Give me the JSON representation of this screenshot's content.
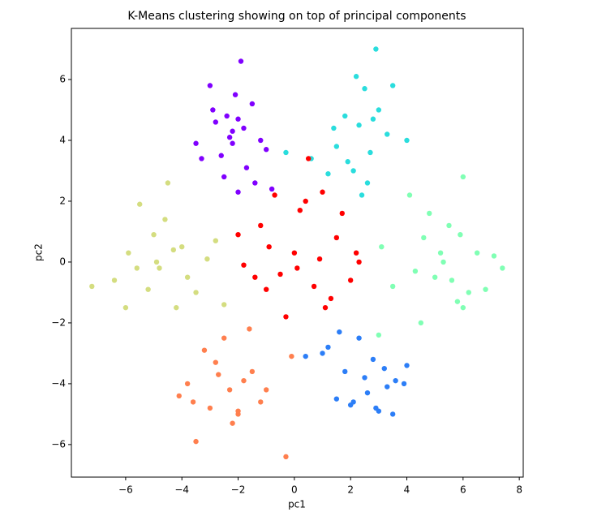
{
  "chart_data": {
    "type": "scatter",
    "title": "K-Means clustering showing on top of principal components",
    "x_label": "pc1",
    "y_label": "pc2",
    "xlim": [
      -7.93,
      8.14
    ],
    "ylim": [
      -7.07,
      7.68
    ],
    "xticks": [
      {
        "value": -6,
        "label": "−6"
      },
      {
        "value": -4,
        "label": "−4"
      },
      {
        "value": -2,
        "label": "−2"
      },
      0,
      2,
      4,
      6,
      8
    ],
    "yticks": [
      {
        "value": -6,
        "label": "−6"
      },
      {
        "value": -4,
        "label": "−4"
      },
      {
        "value": -2,
        "label": "−2"
      },
      0,
      2,
      4,
      6
    ],
    "grid": false,
    "series": [
      {
        "color": "#8000ff",
        "x": [
          -2.2,
          -3.0,
          -1.5,
          -2.6,
          -1.9,
          -2.4,
          -3.3,
          -1.2,
          -2.0,
          -2.8,
          -1.7,
          -2.3,
          -2.1,
          -3.5,
          -1.0,
          -2.5,
          -1.8,
          -2.9,
          -2.2,
          -1.4,
          -0.8,
          -2.0
        ],
        "y": [
          4.3,
          5.8,
          5.2,
          3.5,
          6.6,
          4.8,
          3.4,
          4.0,
          2.3,
          4.6,
          3.1,
          4.1,
          5.5,
          3.9,
          3.7,
          2.8,
          4.4,
          5.0,
          3.9,
          2.6,
          2.4,
          4.7
        ]
      },
      {
        "color": "#2adddd",
        "x": [
          2.3,
          2.9,
          1.8,
          2.5,
          3.5,
          1.5,
          2.1,
          2.7,
          0.6,
          1.2,
          3.3,
          2.2,
          4.0,
          2.8,
          1.9,
          2.4,
          -0.3,
          3.0,
          1.4,
          2.6
        ],
        "y": [
          4.5,
          7.0,
          4.8,
          5.7,
          5.8,
          3.8,
          3.0,
          3.6,
          3.4,
          2.9,
          4.2,
          6.1,
          4.0,
          4.7,
          3.3,
          2.2,
          3.6,
          5.0,
          4.4,
          2.6
        ]
      },
      {
        "color": "#80ffb4",
        "x": [
          5.3,
          4.6,
          6.0,
          5.8,
          7.4,
          4.1,
          6.5,
          5.0,
          5.5,
          3.5,
          6.2,
          4.8,
          6.8,
          5.2,
          4.3,
          3.1,
          5.9,
          6.0,
          4.5,
          5.6,
          7.1,
          3.0
        ],
        "y": [
          0.0,
          0.8,
          2.8,
          -1.3,
          -0.2,
          2.2,
          0.3,
          -0.5,
          1.2,
          -0.8,
          -1.0,
          1.6,
          -0.9,
          0.3,
          -0.3,
          0.5,
          0.9,
          -1.5,
          -2.0,
          -0.6,
          0.2,
          -2.4
        ]
      },
      {
        "color": "#2c7ef7",
        "x": [
          2.5,
          1.5,
          3.2,
          2.0,
          3.5,
          1.2,
          2.8,
          3.9,
          2.3,
          1.8,
          3.0,
          4.0,
          1.0,
          2.6,
          3.6,
          2.1,
          0.4,
          3.3,
          1.6,
          2.9
        ],
        "y": [
          -3.8,
          -4.5,
          -3.5,
          -4.7,
          -5.0,
          -2.8,
          -3.2,
          -4.0,
          -2.5,
          -3.6,
          -4.9,
          -3.4,
          -3.0,
          -4.3,
          -3.9,
          -4.6,
          -3.1,
          -4.1,
          -2.3,
          -4.8
        ]
      },
      {
        "color": "#ff7f4e",
        "x": [
          -2.3,
          -3.5,
          -2.0,
          -1.5,
          -2.8,
          -3.8,
          -1.2,
          -2.5,
          -3.0,
          -0.3,
          -1.8,
          -2.2,
          -3.2,
          -0.1,
          -4.1,
          -1.0,
          -2.7,
          -1.6,
          -3.6,
          -2.0
        ],
        "y": [
          -4.2,
          -5.9,
          -5.0,
          -3.6,
          -3.3,
          -4.0,
          -4.6,
          -2.5,
          -4.8,
          -6.4,
          -3.9,
          -5.3,
          -2.9,
          -3.1,
          -4.4,
          -4.2,
          -3.7,
          -2.2,
          -4.6,
          -4.9
        ]
      },
      {
        "color": "#d4dd80",
        "x": [
          -4.8,
          -5.5,
          -4.0,
          -6.4,
          -7.2,
          -5.0,
          -3.5,
          -4.5,
          -5.9,
          -4.2,
          -3.1,
          -5.2,
          -4.6,
          -2.8,
          -6.0,
          -4.9,
          -3.8,
          -5.6,
          -2.5,
          -4.3
        ],
        "y": [
          -0.2,
          1.9,
          0.5,
          -0.6,
          -0.8,
          0.9,
          -1.0,
          2.6,
          0.3,
          -1.5,
          0.1,
          -0.9,
          1.4,
          0.7,
          -1.5,
          0.0,
          -0.5,
          -0.2,
          -1.4,
          0.4
        ]
      },
      {
        "color": "#ff0000",
        "x": [
          0.0,
          -1.2,
          0.7,
          1.5,
          -0.5,
          2.3,
          -1.8,
          0.4,
          1.1,
          -0.9,
          2.0,
          -1.4,
          0.2,
          1.7,
          -0.3,
          0.9,
          -2.0,
          1.3,
          0.5,
          -0.7,
          2.2,
          0.1,
          1.0,
          -1.0
        ],
        "y": [
          0.3,
          1.2,
          -0.8,
          0.8,
          -0.4,
          0.0,
          -0.1,
          2.0,
          -1.5,
          0.5,
          -0.6,
          -0.5,
          1.7,
          1.6,
          -1.8,
          0.1,
          0.9,
          -1.2,
          3.4,
          2.2,
          0.3,
          -0.2,
          2.3,
          -0.9
        ]
      }
    ]
  }
}
